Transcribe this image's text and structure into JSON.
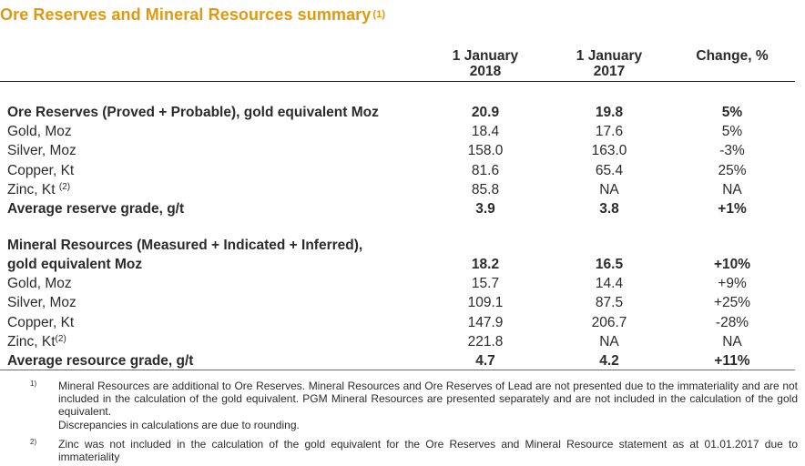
{
  "title": "Ore Reserves and Mineral Resources summary",
  "title_note": "(1)",
  "colors": {
    "title": "#e0990f",
    "text": "#2b2b2b"
  },
  "columns": [
    {
      "line1": "1 January",
      "line2": "2018"
    },
    {
      "line1": "1 January",
      "line2": "2017"
    },
    {
      "line1": "Change, %",
      "line2": ""
    }
  ],
  "reserves": {
    "rows": [
      {
        "label": "Ore Reserves (Proved + Probable), gold equivalent Moz",
        "note": "",
        "v2018": "20.9",
        "v2017": "19.8",
        "change": "5%",
        "bold": true
      },
      {
        "label": "Gold, Moz",
        "note": "",
        "v2018": "18.4",
        "v2017": "17.6",
        "change": "5%",
        "bold": false
      },
      {
        "label": "Silver, Moz",
        "note": "",
        "v2018": "158.0",
        "v2017": "163.0",
        "change": "-3%",
        "bold": false
      },
      {
        "label": "Copper, Kt",
        "note": "",
        "v2018": "81.6",
        "v2017": "65.4",
        "change": "25%",
        "bold": false
      },
      {
        "label": "Zinc, Kt ",
        "note": "(2)",
        "v2018": "85.8",
        "v2017": "NA",
        "change": "NA",
        "bold": false
      },
      {
        "label": "Average reserve grade, g/t",
        "note": "",
        "v2018": "3.9",
        "v2017": "3.8",
        "change": "+1%",
        "bold": true
      }
    ]
  },
  "resources": {
    "heading_line1": "Mineral Resources (Measured + Indicated + Inferred),",
    "rows": [
      {
        "label": "gold equivalent Moz",
        "note": "",
        "v2018": "18.2",
        "v2017": "16.5",
        "change": "+10%",
        "bold": true
      },
      {
        "label": "Gold, Moz",
        "note": "",
        "v2018": "15.7",
        "v2017": "14.4",
        "change": "+9%",
        "bold": false
      },
      {
        "label": "Silver, Moz",
        "note": "",
        "v2018": "109.1",
        "v2017": "87.5",
        "change": "+25%",
        "bold": false
      },
      {
        "label": "Copper, Kt",
        "note": "",
        "v2018": "147.9",
        "v2017": "206.7",
        "change": "-28%",
        "bold": false
      },
      {
        "label": "Zinc, Kt",
        "note": "(2)",
        "v2018": "221.8",
        "v2017": "NA",
        "change": "NA",
        "bold": false
      },
      {
        "label": "Average resource grade, g/t",
        "note": "",
        "v2018": "4.7",
        "v2017": "4.2",
        "change": "+11%",
        "bold": true
      }
    ]
  },
  "footnotes": [
    {
      "mark": "1)",
      "text": "Mineral Resources are additional to Ore Reserves. Mineral Resources and Ore Reserves of Lead are not presented due to the immateriality and are not included in the calculation of the gold equivalent. PGM Mineral Resources are presented separately and are not included in the calculation of the gold equivalent.",
      "extra": "Discrepancies in calculations are due to rounding."
    },
    {
      "mark": "2)",
      "text": "Zinc was not included in the calculation of the gold equivalent for the Ore Reserves and Mineral Resource statement as at 01.01.2017 due to immateriality"
    }
  ]
}
